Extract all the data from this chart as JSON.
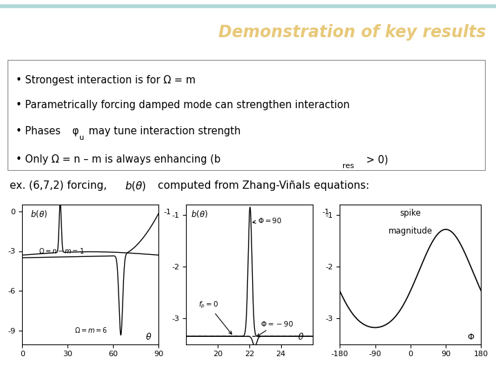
{
  "title": "Demonstration of key results",
  "title_color": "#E8C97A",
  "header_bg": "#909090",
  "header_stripe_color": "#B0D8D8",
  "bg_color": "#FFFFFF",
  "bullet_lines": [
    "• Strongest interaction is for Ω = m",
    "• Parametrically forcing damped mode can strengthen interaction",
    "• Phases φu may tune interaction strength",
    "• Only Ω = n – m is always enhancing (bres > 0)"
  ],
  "plot1_xlim": [
    0,
    90
  ],
  "plot1_ylim": [
    -10,
    0.5
  ],
  "plot1_yticks": [
    0,
    -3,
    -6,
    -9
  ],
  "plot1_xticks": [
    0,
    30,
    60,
    90
  ],
  "plot2_xlim": [
    18,
    26
  ],
  "plot2_ylim": [
    -3.5,
    -0.8
  ],
  "plot2_yticks": [
    -1,
    -2,
    -3
  ],
  "plot2_xticks": [
    20,
    22,
    24
  ],
  "plot3_xlim": [
    -180,
    180
  ],
  "plot3_ylim": [
    -3.5,
    -0.8
  ],
  "plot3_yticks": [
    -1,
    -2,
    -3
  ],
  "plot3_xticks": [
    -180,
    -90,
    0,
    90,
    180
  ]
}
